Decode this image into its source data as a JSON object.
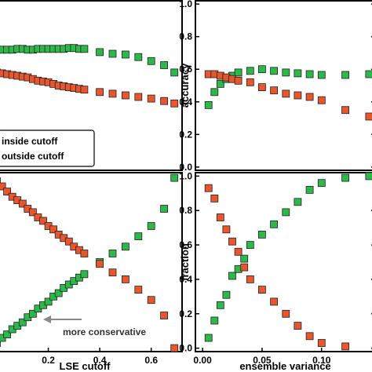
{
  "colors": {
    "inside": "#2db84a",
    "outside": "#e8562d",
    "marker_stroke": "#222222",
    "frame": "#000000",
    "arrow": "#8a8a8a"
  },
  "legend": {
    "inside_label": "inside cutoff",
    "outside_label": "outside cutoff",
    "placement": "bottom-left of top-left panel"
  },
  "annotation": {
    "text": "more conservative",
    "arrow": "pointing left"
  },
  "chart_data": [
    {
      "id": "top-left",
      "type": "scatter",
      "title": "",
      "xlabel": "",
      "ylabel": "",
      "xlim": [
        0.0,
        0.72
      ],
      "ylim": [
        -0.02,
        1.02
      ],
      "xticks": [],
      "yticks": [],
      "series": [
        {
          "key": "inside",
          "x": [
            0.0,
            0.02,
            0.04,
            0.06,
            0.08,
            0.1,
            0.12,
            0.14,
            0.16,
            0.18,
            0.2,
            0.22,
            0.24,
            0.26,
            0.28,
            0.3,
            0.32,
            0.34,
            0.4,
            0.45,
            0.5,
            0.55,
            0.6,
            0.65,
            0.69
          ],
          "y": [
            0.72,
            0.72,
            0.72,
            0.72,
            0.725,
            0.725,
            0.72,
            0.72,
            0.725,
            0.725,
            0.725,
            0.725,
            0.725,
            0.725,
            0.73,
            0.73,
            0.725,
            0.725,
            0.705,
            0.695,
            0.69,
            0.675,
            0.65,
            0.625,
            0.58
          ]
        },
        {
          "key": "outside",
          "x": [
            0.0,
            0.02,
            0.04,
            0.06,
            0.08,
            0.1,
            0.12,
            0.14,
            0.16,
            0.18,
            0.2,
            0.22,
            0.24,
            0.26,
            0.28,
            0.3,
            0.32,
            0.34,
            0.4,
            0.45,
            0.5,
            0.55,
            0.6,
            0.65,
            0.69
          ],
          "y": [
            0.58,
            0.575,
            0.57,
            0.565,
            0.56,
            0.555,
            0.55,
            0.54,
            0.53,
            0.525,
            0.52,
            0.51,
            0.5,
            0.495,
            0.49,
            0.485,
            0.48,
            0.475,
            0.46,
            0.45,
            0.44,
            0.43,
            0.42,
            0.405,
            0.39
          ]
        }
      ]
    },
    {
      "id": "top-right",
      "type": "scatter",
      "title": "",
      "xlabel": "",
      "ylabel": "accuracy",
      "xlim": [
        -0.006,
        0.145
      ],
      "ylim": [
        -0.02,
        1.02
      ],
      "xticks": [],
      "yticks": [
        0.0,
        0.2,
        0.4,
        0.6,
        0.8,
        1.0
      ],
      "ytick_labels": [
        "0.0",
        "0.2",
        "0.4",
        "0.6",
        "0.8",
        "1.0"
      ],
      "series": [
        {
          "key": "inside",
          "x": [
            0.005,
            0.01,
            0.015,
            0.02,
            0.025,
            0.03,
            0.04,
            0.05,
            0.06,
            0.07,
            0.08,
            0.09,
            0.1,
            0.12,
            0.14
          ],
          "y": [
            0.38,
            0.46,
            0.51,
            0.54,
            0.56,
            0.58,
            0.59,
            0.6,
            0.59,
            0.58,
            0.575,
            0.57,
            0.565,
            0.565,
            0.57
          ]
        },
        {
          "key": "outside",
          "x": [
            0.005,
            0.01,
            0.015,
            0.02,
            0.025,
            0.03,
            0.04,
            0.05,
            0.06,
            0.07,
            0.08,
            0.09,
            0.1,
            0.12,
            0.14
          ],
          "y": [
            0.57,
            0.57,
            0.56,
            0.55,
            0.54,
            0.53,
            0.52,
            0.49,
            0.47,
            0.45,
            0.44,
            0.43,
            0.41,
            0.35,
            0.31
          ]
        }
      ]
    },
    {
      "id": "bottom-left",
      "type": "scatter",
      "title": "",
      "xlabel": "LSE cutoff",
      "ylabel": "",
      "xlim": [
        0.0,
        0.72
      ],
      "ylim": [
        -0.02,
        1.02
      ],
      "xticks": [
        0.2,
        0.4,
        0.6
      ],
      "xtick_labels": [
        "0.2",
        "0.4",
        "0.6"
      ],
      "yticks": [],
      "series": [
        {
          "key": "inside",
          "x": [
            0.0,
            0.02,
            0.04,
            0.06,
            0.08,
            0.1,
            0.12,
            0.14,
            0.16,
            0.18,
            0.2,
            0.22,
            0.24,
            0.26,
            0.28,
            0.3,
            0.32,
            0.34,
            0.4,
            0.45,
            0.5,
            0.55,
            0.6,
            0.65,
            0.69
          ],
          "y": [
            0.03,
            0.06,
            0.08,
            0.11,
            0.13,
            0.15,
            0.18,
            0.2,
            0.23,
            0.25,
            0.27,
            0.3,
            0.32,
            0.35,
            0.37,
            0.39,
            0.41,
            0.43,
            0.5,
            0.55,
            0.59,
            0.65,
            0.71,
            0.81,
            0.99
          ]
        },
        {
          "key": "outside",
          "x": [
            0.0,
            0.02,
            0.04,
            0.06,
            0.08,
            0.1,
            0.12,
            0.14,
            0.16,
            0.18,
            0.2,
            0.22,
            0.24,
            0.26,
            0.28,
            0.3,
            0.32,
            0.34,
            0.4,
            0.45,
            0.5,
            0.55,
            0.6,
            0.65,
            0.69
          ],
          "y": [
            0.97,
            0.94,
            0.91,
            0.88,
            0.86,
            0.84,
            0.81,
            0.79,
            0.76,
            0.74,
            0.71,
            0.69,
            0.66,
            0.64,
            0.62,
            0.59,
            0.57,
            0.55,
            0.49,
            0.44,
            0.4,
            0.34,
            0.28,
            0.19,
            0.0
          ]
        }
      ]
    },
    {
      "id": "bottom-right",
      "type": "scatter",
      "title": "",
      "xlabel": "ensemble variance",
      "ylabel": "fraction",
      "xlim": [
        -0.006,
        0.145
      ],
      "ylim": [
        -0.02,
        1.02
      ],
      "xticks": [
        0.0,
        0.05,
        0.1
      ],
      "xtick_labels": [
        "0.00",
        "0.05",
        "0.10"
      ],
      "yticks": [
        0.0,
        0.2,
        0.4,
        0.6,
        0.8,
        1.0
      ],
      "ytick_labels": [
        "0.0",
        "0.2",
        "0.4",
        "0.6",
        "0.8",
        "1.0"
      ],
      "series": [
        {
          "key": "inside",
          "x": [
            0.005,
            0.01,
            0.015,
            0.02,
            0.025,
            0.03,
            0.035,
            0.04,
            0.05,
            0.06,
            0.07,
            0.08,
            0.09,
            0.1,
            0.12,
            0.14
          ],
          "y": [
            0.06,
            0.16,
            0.25,
            0.31,
            0.42,
            0.46,
            0.52,
            0.6,
            0.66,
            0.72,
            0.79,
            0.85,
            0.92,
            0.96,
            0.99,
            1.0
          ]
        },
        {
          "key": "outside",
          "x": [
            0.005,
            0.01,
            0.015,
            0.02,
            0.025,
            0.03,
            0.035,
            0.04,
            0.05,
            0.06,
            0.07,
            0.08,
            0.09,
            0.1,
            0.12
          ],
          "y": [
            0.93,
            0.87,
            0.76,
            0.69,
            0.62,
            0.56,
            0.47,
            0.4,
            0.34,
            0.27,
            0.2,
            0.13,
            0.07,
            0.03,
            0.01
          ]
        }
      ]
    }
  ]
}
